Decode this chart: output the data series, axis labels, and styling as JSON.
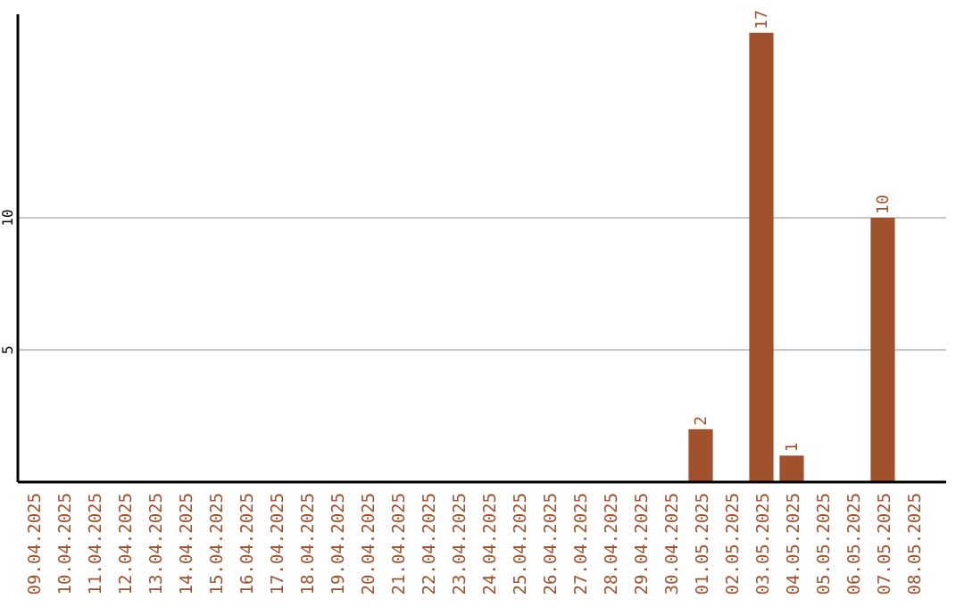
{
  "chart_data": {
    "type": "bar",
    "categories": [
      "09.04.2025",
      "10.04.2025",
      "11.04.2025",
      "12.04.2025",
      "13.04.2025",
      "14.04.2025",
      "15.04.2025",
      "16.04.2025",
      "17.04.2025",
      "18.04.2025",
      "19.04.2025",
      "20.04.2025",
      "21.04.2025",
      "22.04.2025",
      "23.04.2025",
      "24.04.2025",
      "25.04.2025",
      "26.04.2025",
      "27.04.2025",
      "28.04.2025",
      "29.04.2025",
      "30.04.2025",
      "01.05.2025",
      "02.05.2025",
      "03.05.2025",
      "04.05.2025",
      "05.05.2025",
      "06.05.2025",
      "07.05.2025",
      "08.05.2025"
    ],
    "values": [
      0,
      0,
      0,
      0,
      0,
      0,
      0,
      0,
      0,
      0,
      0,
      0,
      0,
      0,
      0,
      0,
      0,
      0,
      0,
      0,
      0,
      0,
      2,
      0,
      17,
      1,
      0,
      0,
      10,
      0
    ],
    "value_labels": [
      null,
      null,
      null,
      null,
      null,
      null,
      null,
      null,
      null,
      null,
      null,
      null,
      null,
      null,
      null,
      null,
      null,
      null,
      null,
      null,
      null,
      null,
      "2",
      null,
      "17",
      "1",
      null,
      null,
      "10",
      null
    ],
    "color": "#a0522d",
    "ylim": [
      0,
      17.7
    ],
    "yticks": [
      5,
      10
    ],
    "grid": "y"
  }
}
